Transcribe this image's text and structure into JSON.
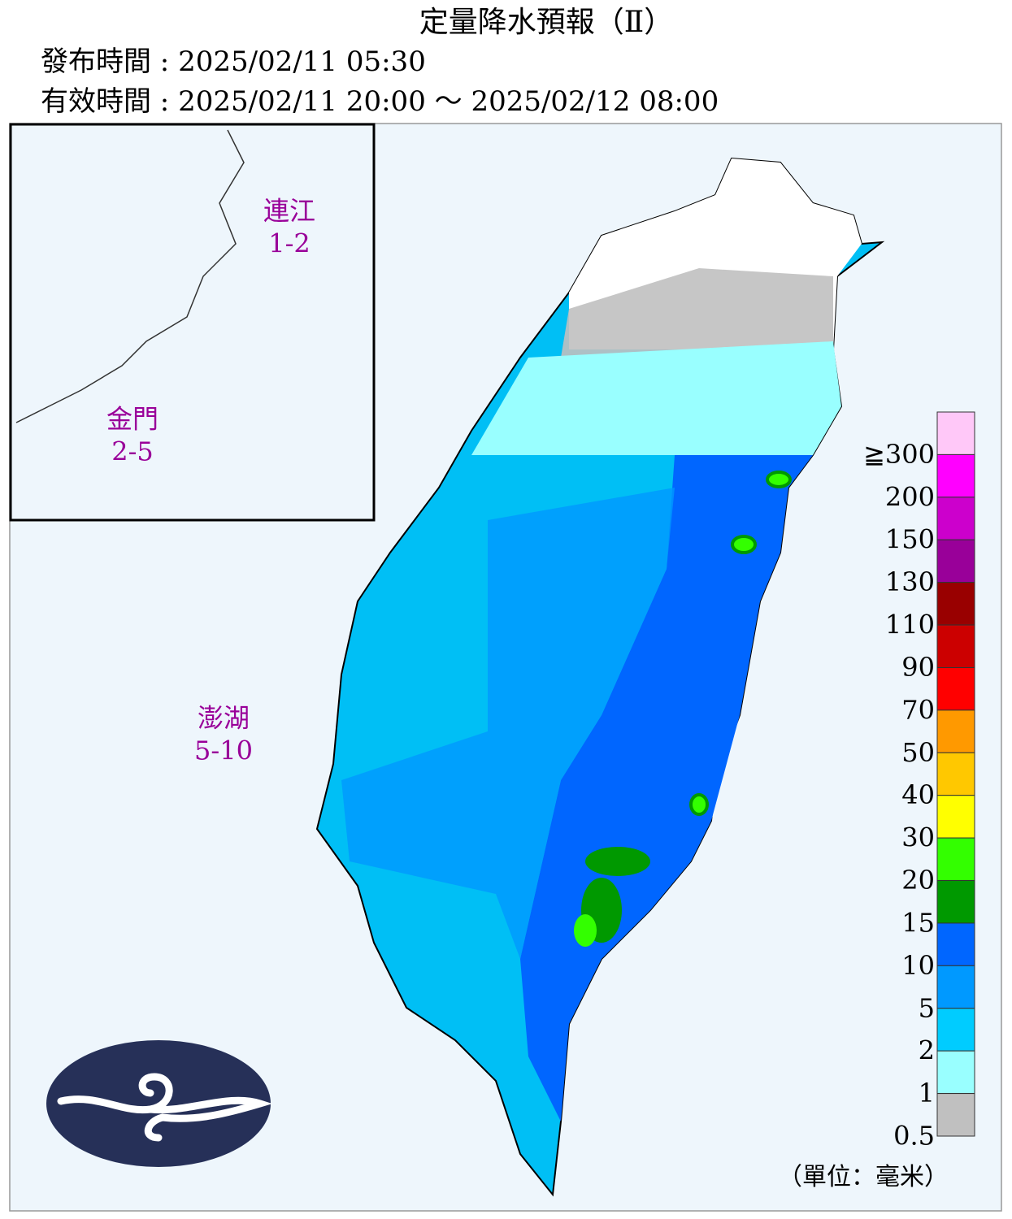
{
  "header": {
    "title": "定量降水預報（Ⅱ）",
    "issue_time": "發布時間 : 2025/02/11 05:30",
    "valid_time": "有效時間 : 2025/02/11 20:00 ～ 2025/02/12 08:00"
  },
  "islands": [
    {
      "name": "連江",
      "range": "1-2"
    },
    {
      "name": "金門",
      "range": "2-5"
    },
    {
      "name": "澎湖",
      "range": "5-10"
    }
  ],
  "legend": {
    "colors": [
      "#ffc8f8",
      "#ff00ff",
      "#cc00cc",
      "#990099",
      "#990000",
      "#cc0000",
      "#ff0000",
      "#ff9900",
      "#ffc800",
      "#ffff00",
      "#33ff00",
      "#009900",
      "#0066ff",
      "#0099ff",
      "#00ccff",
      "#99ffff",
      "#c0c0c0"
    ],
    "labels": [
      "≧300",
      "200",
      "150",
      "130",
      "110",
      "90",
      "70",
      "50",
      "40",
      "30",
      "20",
      "15",
      "10",
      "5",
      "2",
      "1",
      "0.5"
    ],
    "unit": "（單位：毫米）"
  }
}
